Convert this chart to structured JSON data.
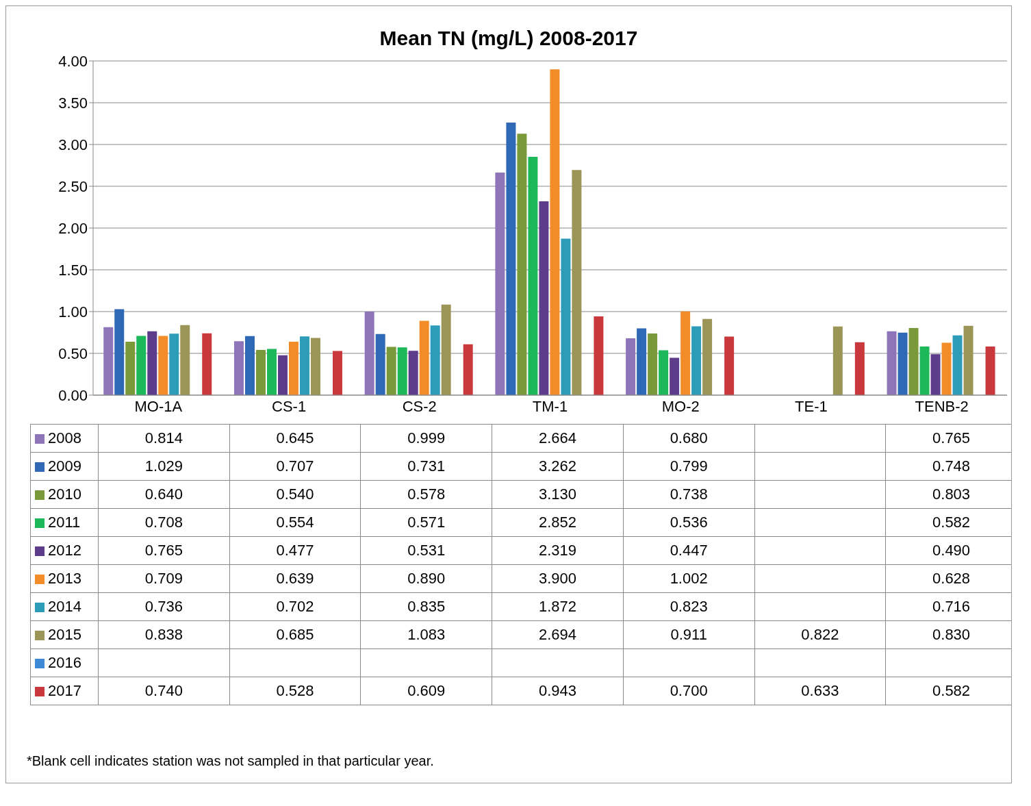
{
  "chart_data": {
    "type": "bar",
    "title": "Mean TN (mg/L) 2008-2017",
    "categories": [
      "MO-1A",
      "CS-1",
      "CS-2",
      "TM-1",
      "MO-2",
      "TE-1",
      "TENB-2"
    ],
    "ylim": [
      0,
      4
    ],
    "yticks": [
      {
        "value": 0,
        "label": "0.00"
      },
      {
        "value": 0.5,
        "label": "0.50"
      },
      {
        "value": 1,
        "label": "1.00"
      },
      {
        "value": 1.5,
        "label": "1.50"
      },
      {
        "value": 2,
        "label": "2.00"
      },
      {
        "value": 2.5,
        "label": "2.50"
      },
      {
        "value": 3,
        "label": "3.00"
      },
      {
        "value": 3.5,
        "label": "3.50"
      },
      {
        "value": 4,
        "label": "4.00"
      }
    ],
    "grid": "y",
    "legend": "bottom",
    "series": [
      {
        "name": "2008",
        "color": "#8e74b8",
        "values": [
          0.814,
          0.645,
          0.999,
          2.664,
          0.68,
          null,
          0.765
        ],
        "value_labels": [
          "0.814",
          "0.645",
          "0.999",
          "2.664",
          "0.680",
          null,
          "0.765"
        ]
      },
      {
        "name": "2009",
        "color": "#2f68b4",
        "values": [
          1.029,
          0.707,
          0.731,
          3.262,
          0.799,
          null,
          0.748
        ],
        "value_labels": [
          "1.029",
          "0.707",
          "0.731",
          "3.262",
          "0.799",
          null,
          "0.748"
        ]
      },
      {
        "name": "2010",
        "color": "#7a9a3a",
        "values": [
          0.64,
          0.54,
          0.578,
          3.13,
          0.738,
          null,
          0.803
        ],
        "value_labels": [
          "0.640",
          "0.540",
          "0.578",
          "3.130",
          "0.738",
          null,
          "0.803"
        ]
      },
      {
        "name": "2011",
        "color": "#1db85a",
        "values": [
          0.708,
          0.554,
          0.571,
          2.852,
          0.536,
          null,
          0.582
        ],
        "value_labels": [
          "0.708",
          "0.554",
          "0.571",
          "2.852",
          "0.536",
          null,
          "0.582"
        ]
      },
      {
        "name": "2012",
        "color": "#5e3c8c",
        "values": [
          0.765,
          0.477,
          0.531,
          2.319,
          0.447,
          null,
          0.49
        ],
        "value_labels": [
          "0.765",
          "0.477",
          "0.531",
          "2.319",
          "0.447",
          null,
          "0.490"
        ]
      },
      {
        "name": "2013",
        "color": "#f28c28",
        "values": [
          0.709,
          0.639,
          0.89,
          3.9,
          1.002,
          null,
          0.628
        ],
        "value_labels": [
          "0.709",
          "0.639",
          "0.890",
          "3.900",
          "1.002",
          null,
          "0.628"
        ]
      },
      {
        "name": "2014",
        "color": "#2d9cb8",
        "values": [
          0.736,
          0.702,
          0.835,
          1.872,
          0.823,
          null,
          0.716
        ],
        "value_labels": [
          "0.736",
          "0.702",
          "0.835",
          "1.872",
          "0.823",
          null,
          "0.716"
        ]
      },
      {
        "name": "2015",
        "color": "#9c9558",
        "values": [
          0.838,
          0.685,
          1.083,
          2.694,
          0.911,
          0.822,
          0.83
        ],
        "value_labels": [
          "0.838",
          "0.685",
          "1.083",
          "2.694",
          "0.911",
          "0.822",
          "0.830"
        ]
      },
      {
        "name": "2016",
        "color": "#3f8ad6",
        "values": [
          null,
          null,
          null,
          null,
          null,
          null,
          null
        ],
        "value_labels": [
          null,
          null,
          null,
          null,
          null,
          null,
          null
        ]
      },
      {
        "name": "2017",
        "color": "#c8383c",
        "values": [
          0.74,
          0.528,
          0.609,
          0.943,
          0.7,
          0.633,
          0.582
        ],
        "value_labels": [
          "0.740",
          "0.528",
          "0.609",
          "0.943",
          "0.700",
          "0.633",
          "0.582"
        ]
      }
    ],
    "annotations": [
      "*Blank cell indicates station was not sampled in that particular year."
    ]
  }
}
